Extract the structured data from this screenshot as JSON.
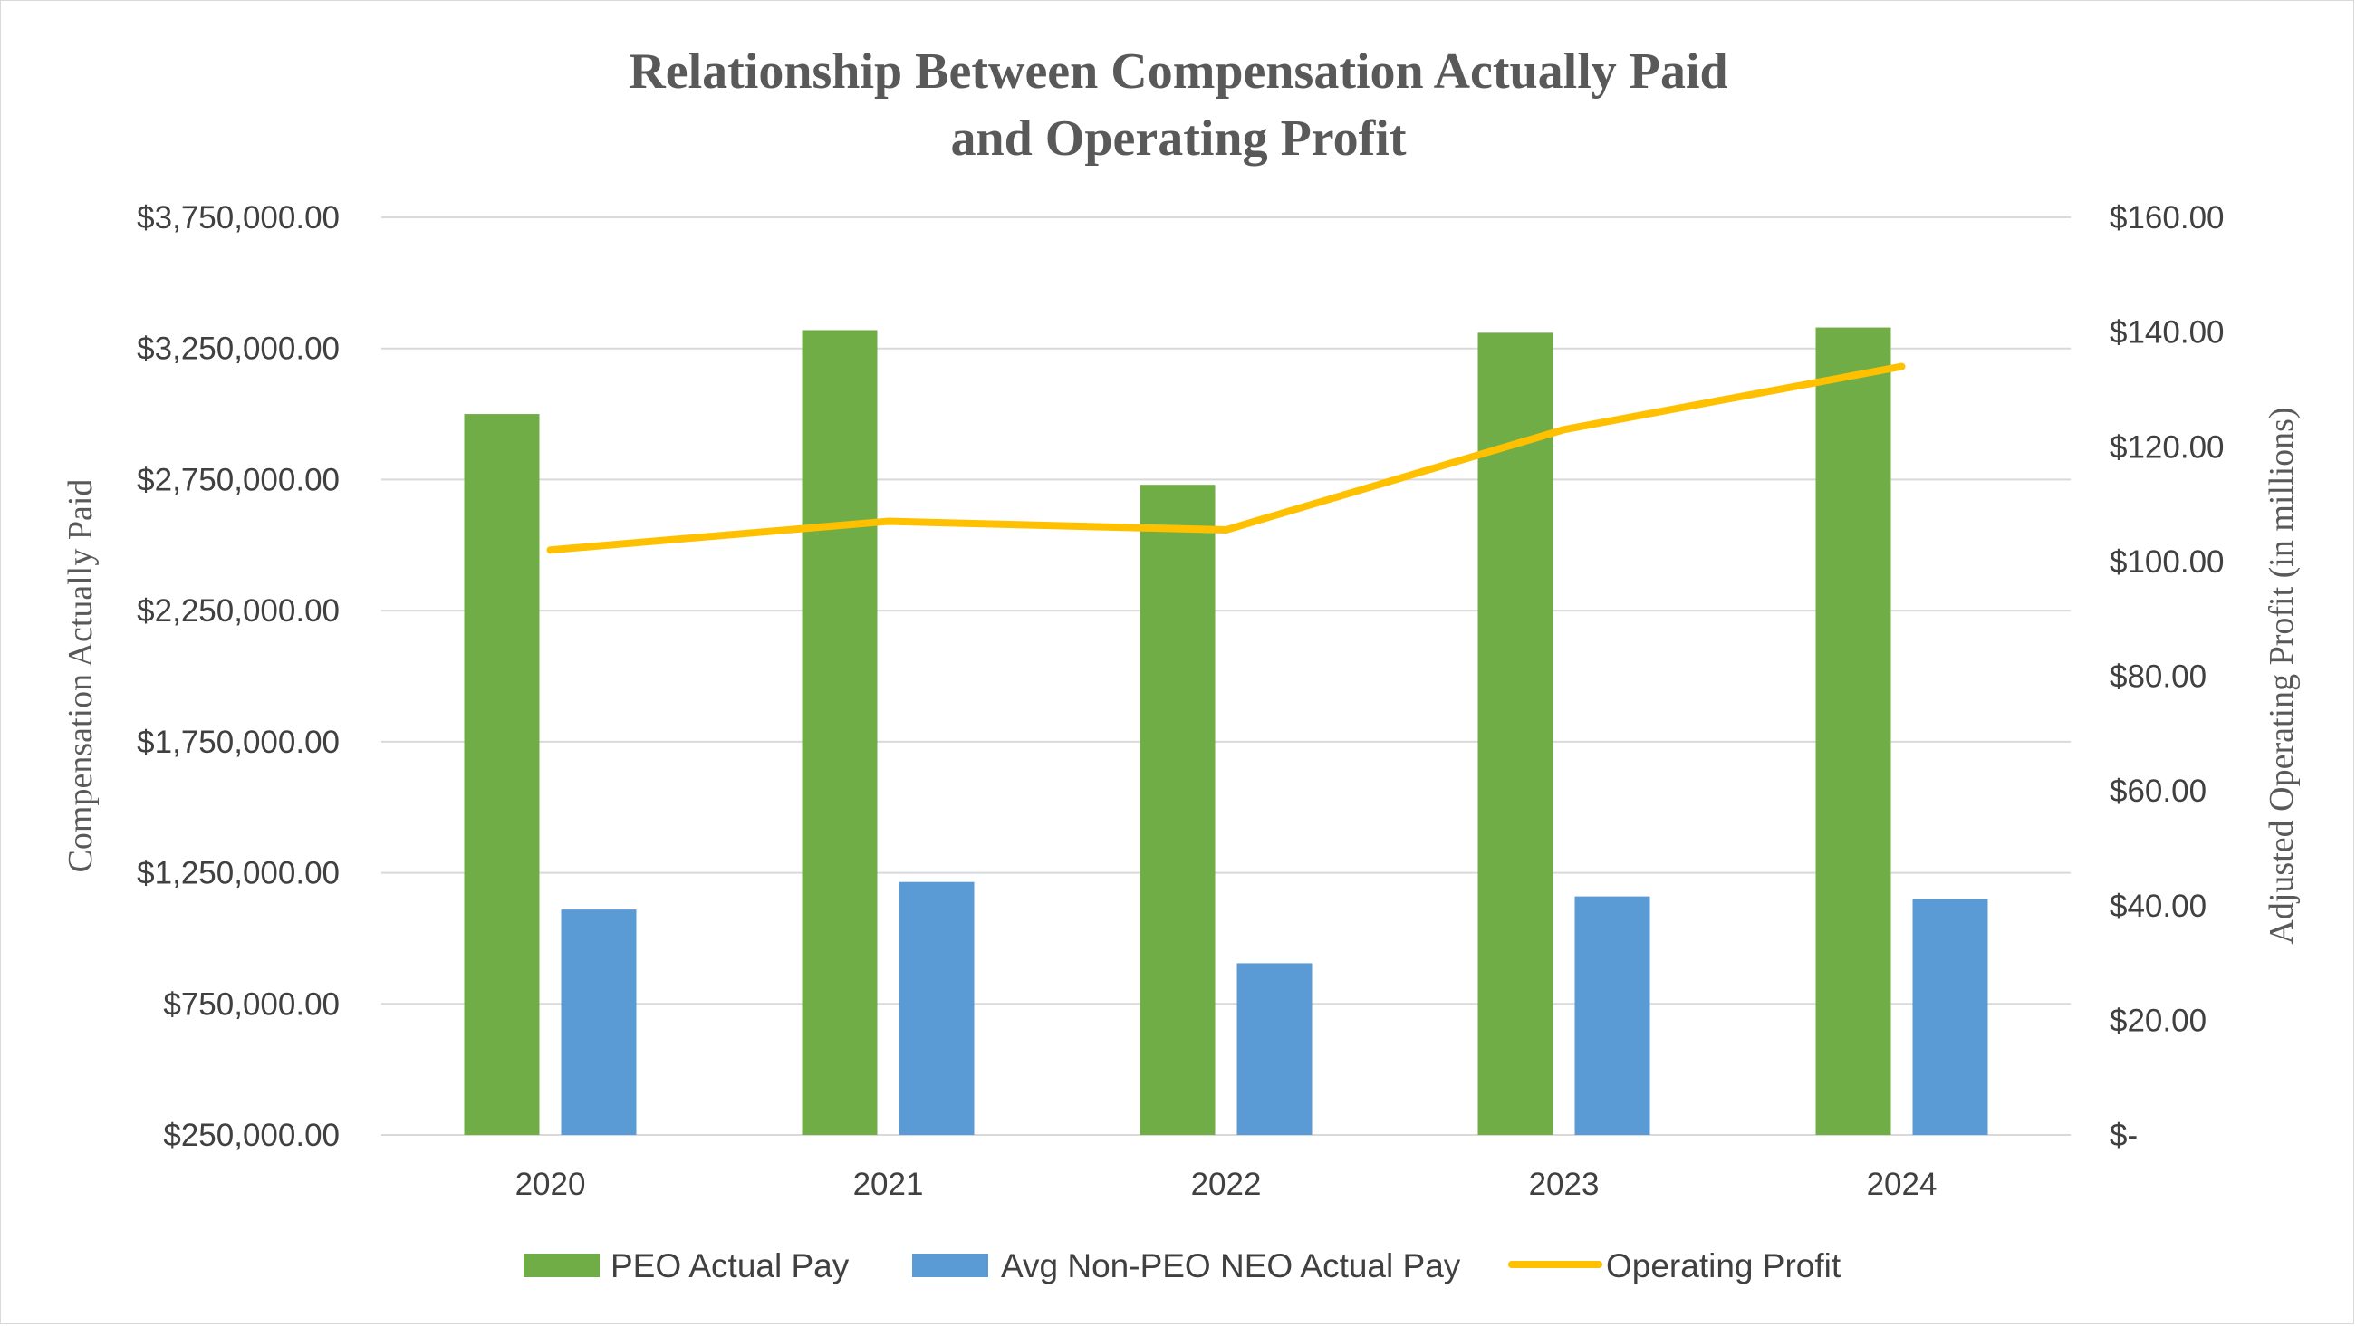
{
  "chart_data": {
    "type": "bar",
    "title": [
      "Relationship Between Compensation Actually Paid",
      "and Operating Profit"
    ],
    "categories": [
      "2020",
      "2021",
      "2022",
      "2023",
      "2024"
    ],
    "ylabel": "Compensation Actually Paid",
    "y2label": "Adjusted Operating Profit (in millions)",
    "ylim": [
      250000,
      3750000
    ],
    "y2lim": [
      0,
      160
    ],
    "y_ticks": [
      "$250,000.00",
      "$750,000.00",
      "$1,250,000.00",
      "$1,750,000.00",
      "$2,250,000.00",
      "$2,750,000.00",
      "$3,250,000.00",
      "$3,750,000.00"
    ],
    "y2_ticks": [
      "$-",
      "$20.00",
      "$40.00",
      "$60.00",
      "$80.00",
      "$100.00",
      "$120.00",
      "$140.00",
      "$160.00"
    ],
    "grid": true,
    "legend_position": "bottom",
    "series": [
      {
        "name": "PEO Actual Pay",
        "type": "bar",
        "axis": "left",
        "color": "#70ad47",
        "values": [
          3000000,
          3320000,
          2730000,
          3310000,
          3330000
        ]
      },
      {
        "name": "Avg Non-PEO NEO Actual Pay",
        "type": "bar",
        "axis": "left",
        "color": "#5b9bd5",
        "values": [
          1110000,
          1215000,
          905000,
          1160000,
          1150000
        ]
      },
      {
        "name": "Operating Profit",
        "type": "line",
        "axis": "right",
        "color": "#ffc000",
        "values": [
          102,
          107,
          105.5,
          123,
          134
        ]
      }
    ]
  }
}
